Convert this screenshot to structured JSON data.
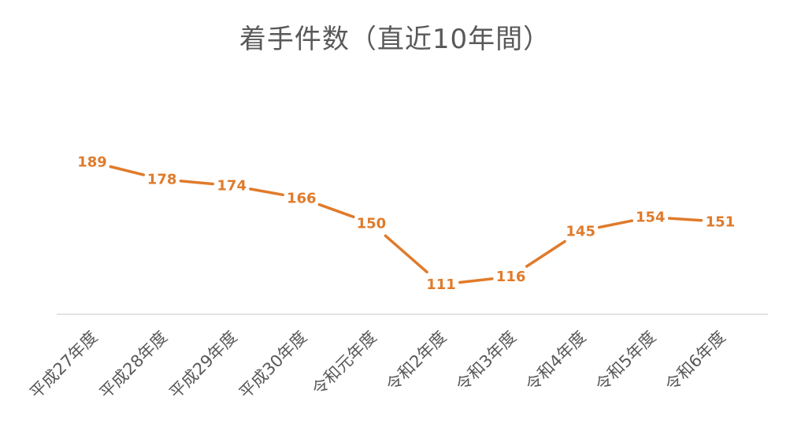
{
  "chart_data": {
    "type": "line",
    "title": "着手件数（直近10年間）",
    "xlabel": "",
    "ylabel": "",
    "categories": [
      "平成27年度",
      "平成28年度",
      "平成29年度",
      "平成30年度",
      "令和元年度",
      "令和2年度",
      "令和3年度",
      "令和4年度",
      "令和5年度",
      "令和6年度"
    ],
    "series": [
      {
        "values": [
          189,
          178,
          174,
          166,
          150,
          111,
          116,
          145,
          154,
          151
        ],
        "color": "#E07B2B"
      }
    ],
    "ylim": [
      92,
      228
    ],
    "grid": false,
    "legend": "none",
    "data_labels": true,
    "axis_color": "#D9D9D9",
    "title_color": "#595959",
    "tick_color": "#595959"
  }
}
